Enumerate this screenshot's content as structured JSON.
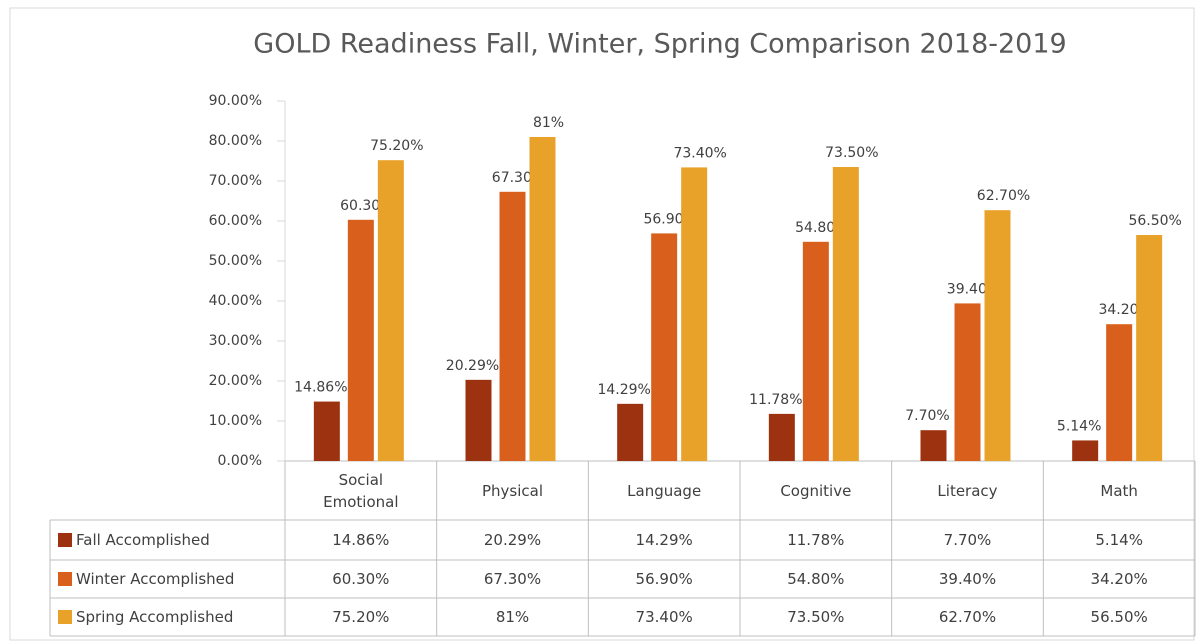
{
  "chart_data": {
    "type": "bar",
    "title": "GOLD Readiness Fall, Winter, Spring Comparison 2018-2019",
    "categories": [
      "Social Emotional",
      "Physical",
      "Language",
      "Cognitive",
      "Literacy",
      "Math"
    ],
    "series": [
      {
        "name": "Fall Accomplished",
        "color": "#9c3210",
        "values": [
          14.86,
          20.29,
          14.29,
          11.78,
          7.7,
          5.14
        ],
        "value_labels": [
          "14.86%",
          "20.29%",
          "14.29%",
          "11.78%",
          "7.70%",
          "5.14%"
        ]
      },
      {
        "name": "Winter Accomplished",
        "color": "#d9601c",
        "values": [
          60.3,
          67.3,
          56.9,
          54.8,
          39.4,
          34.2
        ],
        "value_labels": [
          "60.30%",
          "67.30%",
          "56.90%",
          "54.80%",
          "39.40%",
          "34.20%"
        ]
      },
      {
        "name": "Spring Accomplished",
        "color": "#e8a22a",
        "values": [
          75.2,
          81,
          73.4,
          73.5,
          62.7,
          56.5
        ],
        "value_labels": [
          "75.20%",
          "81%",
          "73.40%",
          "73.50%",
          "62.70%",
          "56.50%"
        ]
      }
    ],
    "ylim": [
      0,
      90
    ],
    "yticks": [
      {
        "value": 0,
        "label": "0.00%"
      },
      {
        "value": 10,
        "label": "10.00%"
      },
      {
        "value": 20,
        "label": "20.00%"
      },
      {
        "value": 30,
        "label": "30.00%"
      },
      {
        "value": 40,
        "label": "40.00%"
      },
      {
        "value": 50,
        "label": "50.00%"
      },
      {
        "value": 60,
        "label": "60.00%"
      },
      {
        "value": 70,
        "label": "70.00%"
      },
      {
        "value": 80,
        "label": "80.00%"
      },
      {
        "value": 90,
        "label": "90.00%"
      }
    ],
    "legend": "bottom-table"
  }
}
